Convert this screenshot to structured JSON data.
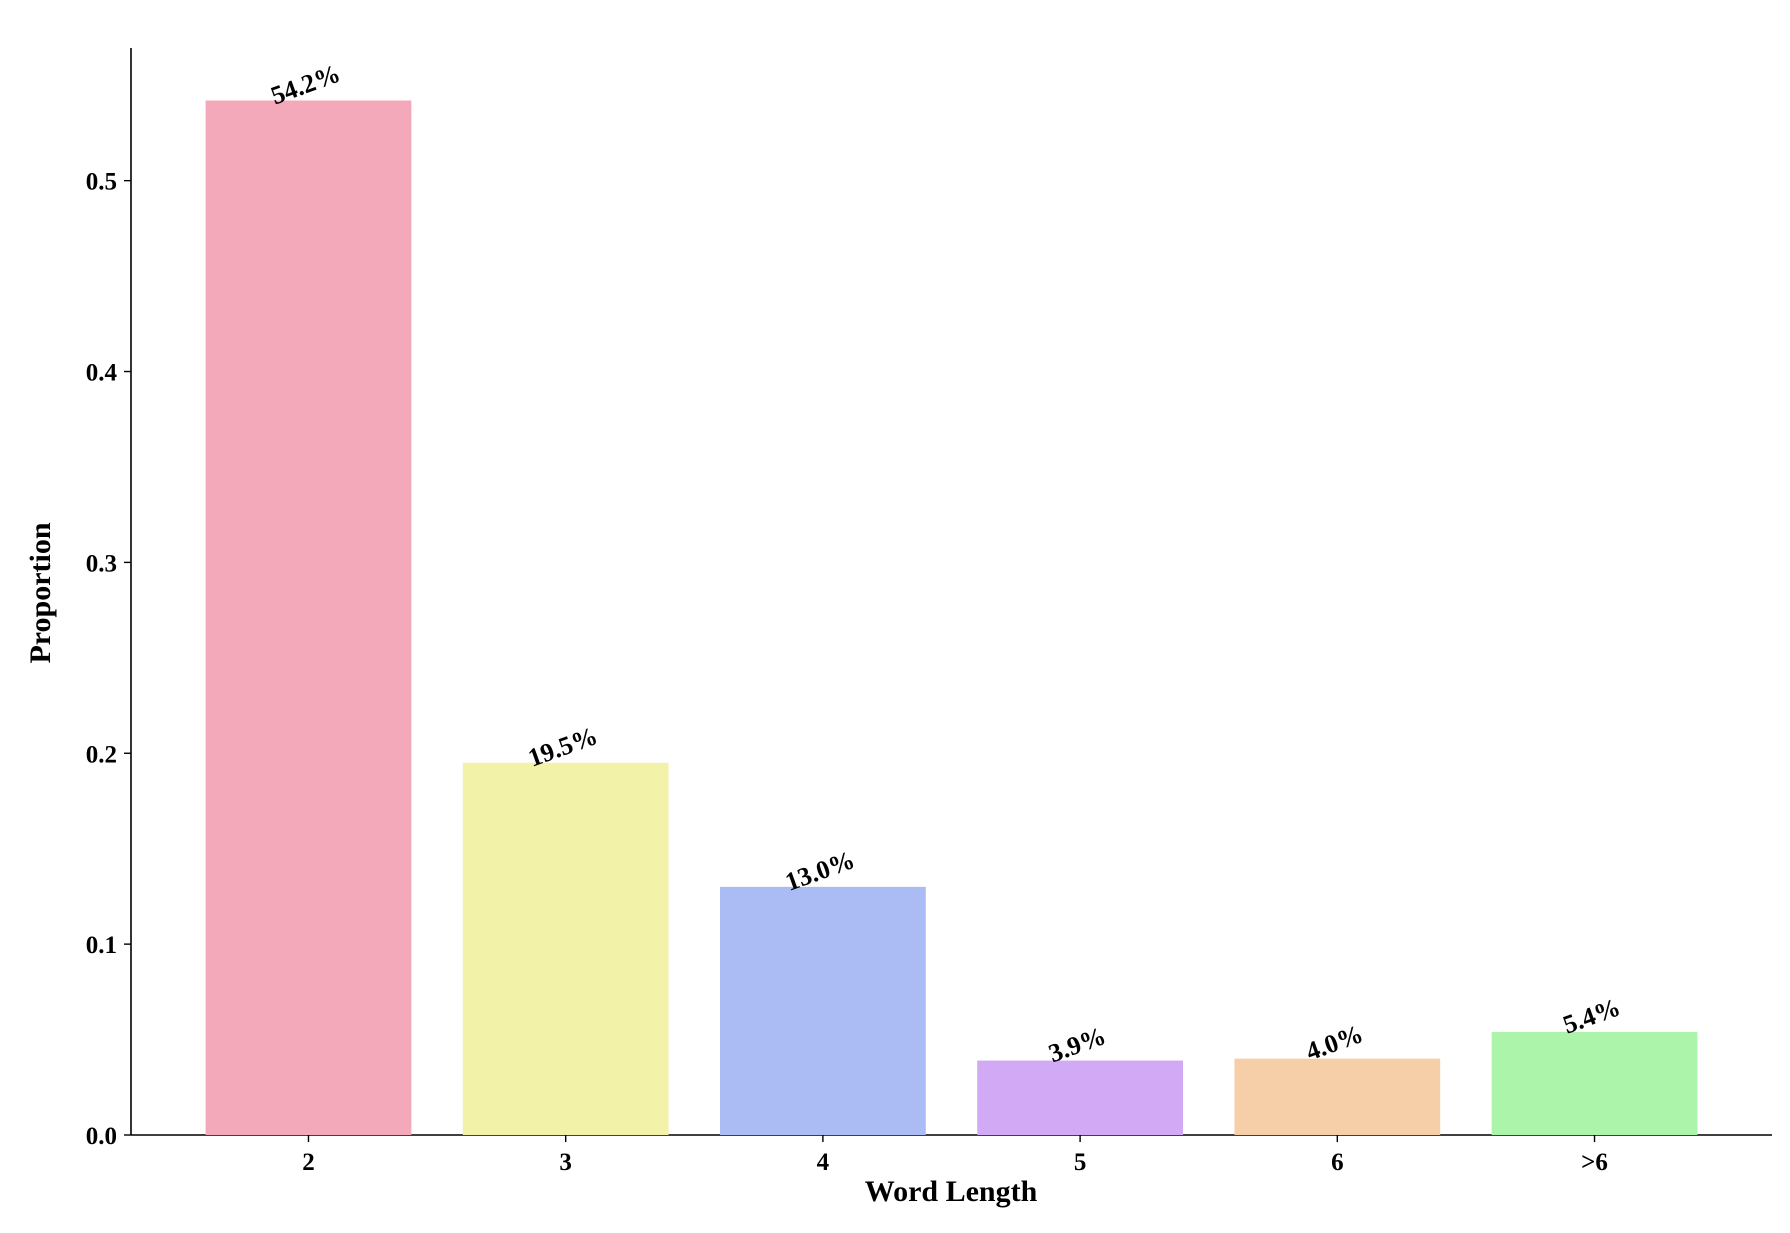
{
  "chart_data": {
    "type": "bar",
    "x_label": "Word Length",
    "y_label": "Proportion",
    "categories": [
      "2",
      "3",
      "4",
      "5",
      "6",
      ">6"
    ],
    "values": [
      0.542,
      0.195,
      0.13,
      0.039,
      0.04,
      0.054
    ],
    "value_labels": [
      "54.2%",
      "19.5%",
      "13.0%",
      "3.9%",
      "4.0%",
      "5.4%"
    ],
    "colors": [
      "#f4a9bb",
      "#f2f3a9",
      "#abbbf4",
      "#d2a9f4",
      "#f6cfa9",
      "#abf4a9"
    ],
    "ylim": [
      0,
      0.5695
    ],
    "yticks": [
      {
        "value": 0,
        "label": "0.0"
      },
      0.1,
      0.2,
      0.3,
      0.4,
      0.5
    ],
    "grid": false
  }
}
